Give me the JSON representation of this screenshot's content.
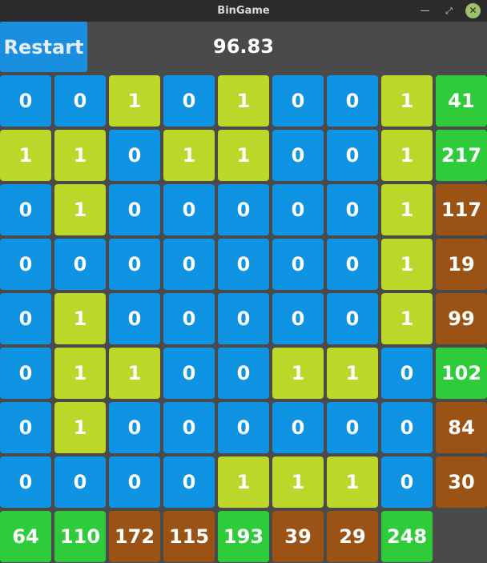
{
  "window": {
    "title": "BinGame",
    "controls": [
      "minimize-icon",
      "maximize-icon",
      "close-icon"
    ]
  },
  "toolbar": {
    "restart_label": "Restart",
    "score": "96.83"
  },
  "colors": {
    "bit_zero": "#0e93e2",
    "bit_one": "#bcd62a",
    "target_matched": "#2ecc3a",
    "target_unmatched": "#9a5314"
  },
  "board": {
    "rows": [
      {
        "bits": [
          "0",
          "0",
          "1",
          "0",
          "1",
          "0",
          "0",
          "1"
        ],
        "target": "41",
        "matched": true
      },
      {
        "bits": [
          "1",
          "1",
          "0",
          "1",
          "1",
          "0",
          "0",
          "1"
        ],
        "target": "217",
        "matched": true
      },
      {
        "bits": [
          "0",
          "1",
          "0",
          "0",
          "0",
          "0",
          "0",
          "1"
        ],
        "target": "117",
        "matched": false
      },
      {
        "bits": [
          "0",
          "0",
          "0",
          "0",
          "0",
          "0",
          "0",
          "1"
        ],
        "target": "19",
        "matched": false
      },
      {
        "bits": [
          "0",
          "1",
          "0",
          "0",
          "0",
          "0",
          "0",
          "1"
        ],
        "target": "99",
        "matched": false
      },
      {
        "bits": [
          "0",
          "1",
          "1",
          "0",
          "0",
          "1",
          "1",
          "0"
        ],
        "target": "102",
        "matched": true
      },
      {
        "bits": [
          "0",
          "1",
          "0",
          "0",
          "0",
          "0",
          "0",
          "0"
        ],
        "target": "84",
        "matched": false
      },
      {
        "bits": [
          "0",
          "0",
          "0",
          "0",
          "1",
          "1",
          "1",
          "0"
        ],
        "target": "30",
        "matched": false
      }
    ],
    "column_targets": [
      {
        "target": "64",
        "matched": true
      },
      {
        "target": "110",
        "matched": true
      },
      {
        "target": "172",
        "matched": false
      },
      {
        "target": "115",
        "matched": false
      },
      {
        "target": "193",
        "matched": true
      },
      {
        "target": "39",
        "matched": false
      },
      {
        "target": "29",
        "matched": false
      },
      {
        "target": "248",
        "matched": true
      }
    ]
  }
}
